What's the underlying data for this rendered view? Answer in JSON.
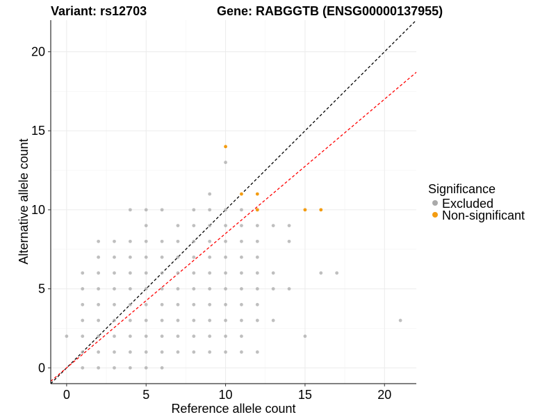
{
  "chart_data": {
    "type": "scatter",
    "title_left": "Variant: rs12703",
    "title_right": "Gene: RABGGTB (ENSG00000137955)",
    "xlabel": "Reference allele count",
    "ylabel": "Alternative allele count",
    "xlim": [
      -1,
      22
    ],
    "ylim": [
      -1,
      22
    ],
    "xticks": [
      0,
      5,
      10,
      15,
      20
    ],
    "yticks": [
      0,
      5,
      10,
      15,
      20
    ],
    "grid": true,
    "legend": {
      "title": "Significance",
      "position": "right",
      "entries": [
        {
          "label": "Excluded",
          "color": "#aaaaaa"
        },
        {
          "label": "Non-significant",
          "color": "#f39c12"
        }
      ]
    },
    "reference_lines": [
      {
        "slope": 1,
        "intercept": 0,
        "color": "#000000",
        "style": "dashed"
      },
      {
        "slope": 0.85,
        "intercept": 0,
        "color": "#ff0000",
        "style": "dashed"
      }
    ],
    "series": [
      {
        "name": "Excluded",
        "color": "#aaaaaa",
        "points": [
          [
            0,
            2
          ],
          [
            1,
            0
          ],
          [
            1,
            1
          ],
          [
            1,
            2
          ],
          [
            1,
            3
          ],
          [
            1,
            4
          ],
          [
            1,
            5
          ],
          [
            1,
            6
          ],
          [
            2,
            0
          ],
          [
            2,
            1
          ],
          [
            2,
            2
          ],
          [
            2,
            3
          ],
          [
            2,
            4
          ],
          [
            2,
            5
          ],
          [
            2,
            6
          ],
          [
            2,
            7
          ],
          [
            2,
            8
          ],
          [
            3,
            0
          ],
          [
            3,
            1
          ],
          [
            3,
            2
          ],
          [
            3,
            3
          ],
          [
            3,
            4
          ],
          [
            3,
            5
          ],
          [
            3,
            6
          ],
          [
            3,
            7
          ],
          [
            3,
            8
          ],
          [
            4,
            0
          ],
          [
            4,
            1
          ],
          [
            4,
            2
          ],
          [
            4,
            3
          ],
          [
            4,
            4
          ],
          [
            4,
            5
          ],
          [
            4,
            6
          ],
          [
            4,
            7
          ],
          [
            4,
            8
          ],
          [
            4,
            10
          ],
          [
            5,
            0
          ],
          [
            5,
            1
          ],
          [
            5,
            2
          ],
          [
            5,
            3
          ],
          [
            5,
            4
          ],
          [
            5,
            5
          ],
          [
            5,
            6
          ],
          [
            5,
            7
          ],
          [
            5,
            8
          ],
          [
            5,
            9
          ],
          [
            5,
            10
          ],
          [
            6,
            0
          ],
          [
            6,
            1
          ],
          [
            6,
            2
          ],
          [
            6,
            3
          ],
          [
            6,
            4
          ],
          [
            6,
            5
          ],
          [
            6,
            6
          ],
          [
            6,
            7
          ],
          [
            6,
            8
          ],
          [
            6,
            10
          ],
          [
            7,
            1
          ],
          [
            7,
            2
          ],
          [
            7,
            3
          ],
          [
            7,
            4
          ],
          [
            7,
            5
          ],
          [
            7,
            6
          ],
          [
            7,
            7
          ],
          [
            7,
            8
          ],
          [
            7,
            9
          ],
          [
            8,
            1
          ],
          [
            8,
            2
          ],
          [
            8,
            3
          ],
          [
            8,
            4
          ],
          [
            8,
            5
          ],
          [
            8,
            6
          ],
          [
            8,
            7
          ],
          [
            8,
            8
          ],
          [
            8,
            9
          ],
          [
            8,
            10
          ],
          [
            9,
            1
          ],
          [
            9,
            2
          ],
          [
            9,
            3
          ],
          [
            9,
            4
          ],
          [
            9,
            5
          ],
          [
            9,
            6
          ],
          [
            9,
            7
          ],
          [
            9,
            8
          ],
          [
            9,
            9
          ],
          [
            9,
            10
          ],
          [
            9,
            11
          ],
          [
            10,
            1
          ],
          [
            10,
            2
          ],
          [
            10,
            3
          ],
          [
            10,
            4
          ],
          [
            10,
            5
          ],
          [
            10,
            6
          ],
          [
            10,
            7
          ],
          [
            10,
            8
          ],
          [
            10,
            9
          ],
          [
            10,
            10
          ],
          [
            10,
            13
          ],
          [
            11,
            1
          ],
          [
            11,
            2
          ],
          [
            11,
            3
          ],
          [
            11,
            4
          ],
          [
            11,
            5
          ],
          [
            11,
            6
          ],
          [
            11,
            7
          ],
          [
            11,
            8
          ],
          [
            11,
            9
          ],
          [
            11,
            10
          ],
          [
            12,
            1
          ],
          [
            12,
            3
          ],
          [
            12,
            4
          ],
          [
            12,
            5
          ],
          [
            12,
            6
          ],
          [
            12,
            7
          ],
          [
            12,
            8
          ],
          [
            12,
            9
          ],
          [
            12,
            10
          ],
          [
            13,
            3
          ],
          [
            13,
            5
          ],
          [
            13,
            6
          ],
          [
            13,
            9
          ],
          [
            14,
            5
          ],
          [
            14,
            9
          ],
          [
            14,
            8
          ],
          [
            15,
            2
          ],
          [
            16,
            6
          ],
          [
            17,
            6
          ],
          [
            21,
            3
          ]
        ]
      },
      {
        "name": "Non-significant",
        "color": "#f39c12",
        "points": [
          [
            10,
            14
          ],
          [
            11,
            11
          ],
          [
            12,
            11
          ],
          [
            12,
            10
          ],
          [
            15,
            10
          ],
          [
            16,
            10
          ]
        ]
      }
    ]
  }
}
